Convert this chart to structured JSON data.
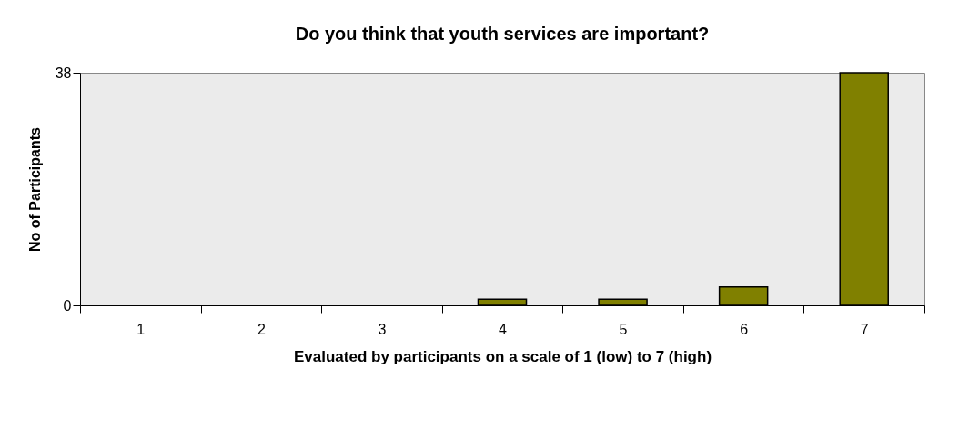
{
  "chart_data": {
    "type": "bar",
    "title": "Do you think that youth services are important?",
    "xlabel": "Evaluated by participants on a scale of 1 (low) to 7 (high)",
    "ylabel": "No of Participants",
    "categories": [
      "1",
      "2",
      "3",
      "4",
      "5",
      "6",
      "7"
    ],
    "values": [
      0,
      0,
      0,
      1,
      1,
      3,
      38
    ],
    "color": "#808000",
    "ylim": [
      0,
      38
    ],
    "yticks": [
      0,
      38
    ],
    "grid": false
  }
}
